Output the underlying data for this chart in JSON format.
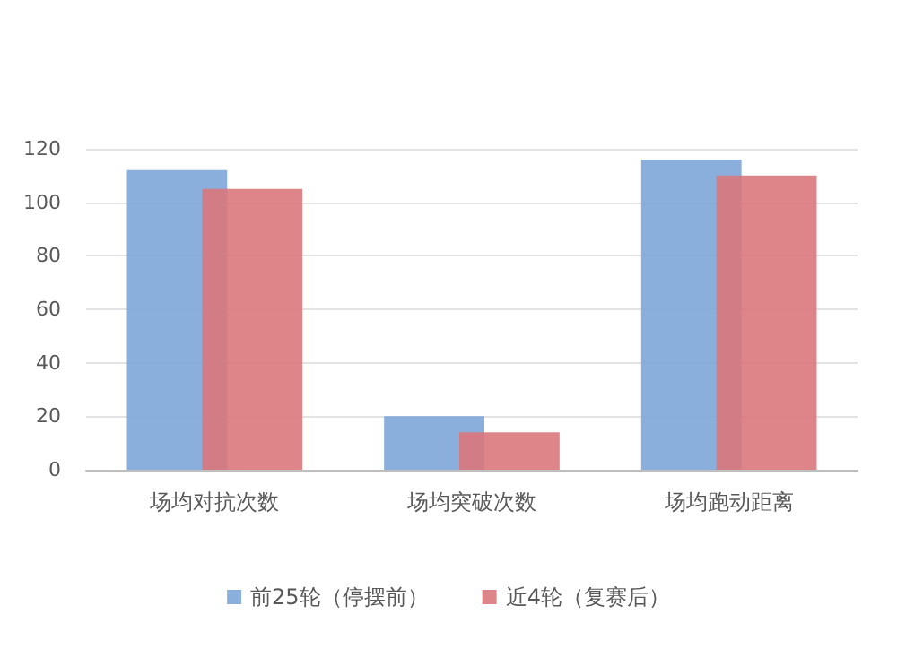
{
  "chart_data": {
    "type": "bar",
    "categories": [
      "场均对抗次数",
      "场均突破次数",
      "场均跑动距离"
    ],
    "series": [
      {
        "name": "前25轮（停摆前）",
        "color": "#7ea6d8",
        "values": [
          112,
          20,
          116
        ]
      },
      {
        "name": "近4轮（复赛后）",
        "color": "#d9787b",
        "values": [
          105,
          14,
          110
        ]
      }
    ],
    "ylim": [
      0,
      120
    ],
    "yticks": [
      0,
      20,
      40,
      60,
      80,
      100,
      120
    ],
    "grid": "y",
    "legend": "bottom"
  }
}
